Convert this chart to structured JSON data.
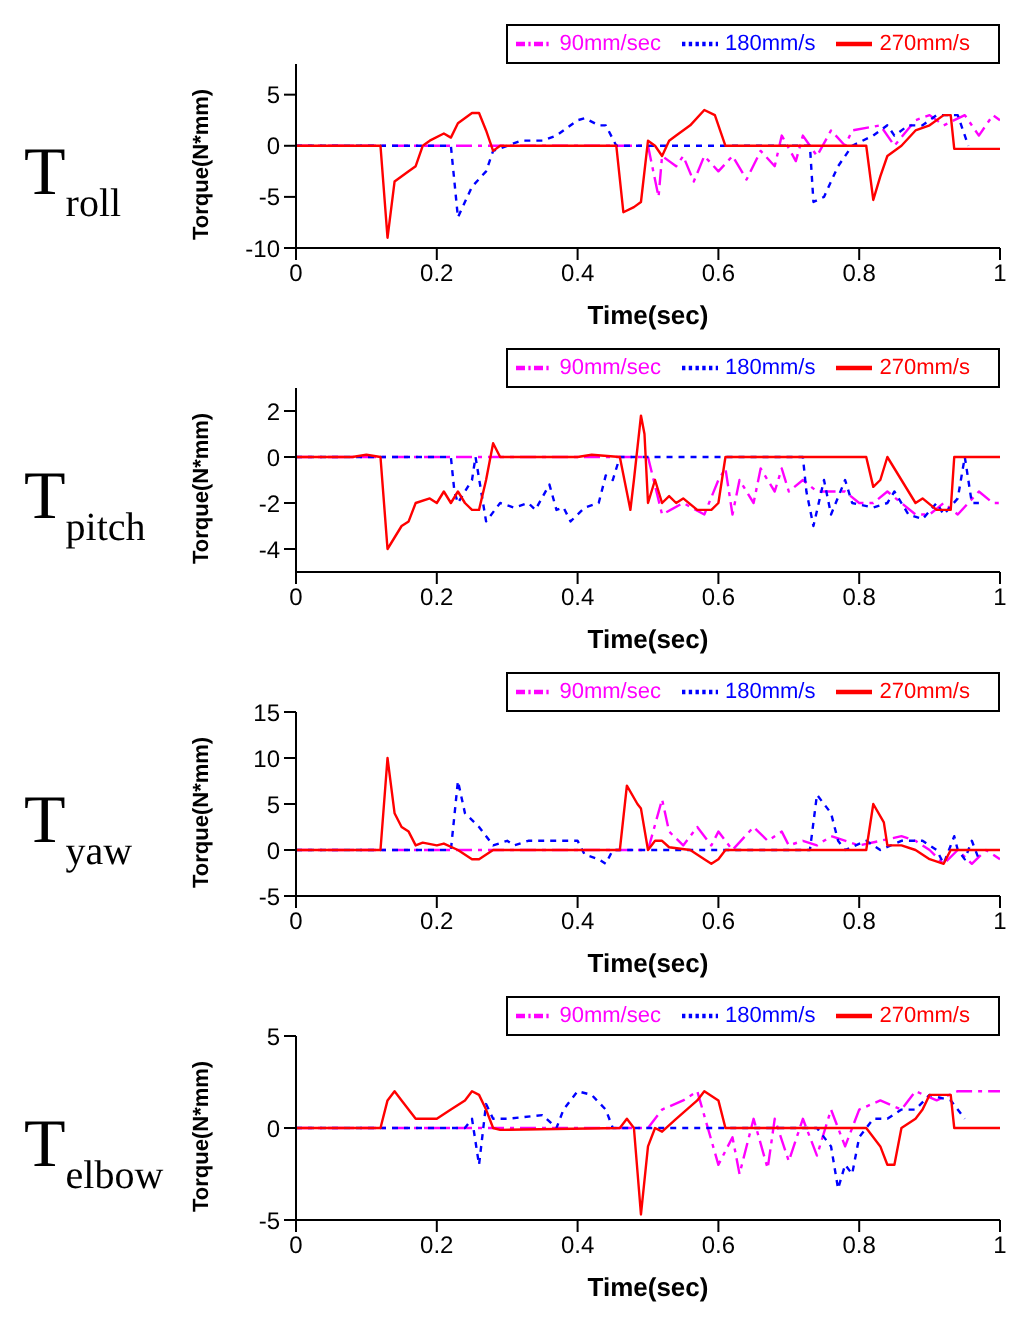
{
  "chart_data": [
    {
      "type": "line",
      "title": "T$_{roll}$",
      "xlabel": "Time(sec)",
      "ylabel": "Torque(N*mm)",
      "xlim": [
        0,
        1
      ],
      "xticks": [
        0,
        0.2,
        0.4,
        0.6,
        0.8,
        1
      ],
      "ylim": [
        -10,
        8
      ],
      "yticks": [
        -10,
        -5,
        0,
        5
      ],
      "legend": "top right",
      "marker": "none",
      "series": [
        {
          "name": "90mm/sec",
          "color": "#ff00ff",
          "line_style": "dashed",
          "x": [
            0,
            0.5,
            0.515,
            0.52,
            0.54,
            0.55,
            0.565,
            0.58,
            0.6,
            0.62,
            0.64,
            0.66,
            0.68,
            0.69,
            0.71,
            0.72,
            0.74,
            0.76,
            0.78,
            0.79,
            0.83,
            0.85,
            0.88,
            0.9,
            0.92,
            0.95,
            0.97,
            0.99,
            1
          ],
          "values": [
            0,
            0,
            -5,
            -1,
            -2,
            -1,
            -3.5,
            -1,
            -2.5,
            -1,
            -3.3,
            -0.5,
            -2,
            1,
            -1.5,
            1,
            -1,
            1.5,
            0,
            1.5,
            2,
            0,
            2.5,
            3,
            2,
            3,
            1,
            3,
            2.5
          ]
        },
        {
          "name": "180mm/s",
          "color": "#0000ff",
          "line_style": "dotted",
          "x": [
            0,
            0.22,
            0.23,
            0.25,
            0.27,
            0.28,
            0.3,
            0.32,
            0.35,
            0.37,
            0.4,
            0.41,
            0.43,
            0.44,
            0.455,
            0.73,
            0.735,
            0.75,
            0.77,
            0.79,
            0.82,
            0.84,
            0.85,
            0.87,
            0.89,
            0.91,
            0.94,
            0.955
          ],
          "values": [
            0,
            0,
            -7,
            -4,
            -2.5,
            -0.5,
            0,
            0.5,
            0.5,
            1,
            2.5,
            2.7,
            2,
            2,
            0,
            0,
            -5.5,
            -5,
            -2,
            0,
            1,
            2,
            1,
            2,
            2,
            3,
            3,
            0
          ]
        },
        {
          "name": "270mm/s",
          "color": "#ff0000",
          "line_style": "solid",
          "x": [
            0,
            0.12,
            0.13,
            0.14,
            0.16,
            0.17,
            0.18,
            0.19,
            0.21,
            0.22,
            0.23,
            0.25,
            0.26,
            0.27,
            0.28,
            0.29,
            0.455,
            0.465,
            0.48,
            0.49,
            0.5,
            0.51,
            0.52,
            0.53,
            0.54,
            0.56,
            0.58,
            0.595,
            0.605,
            0.61,
            0.81,
            0.82,
            0.83,
            0.84,
            0.86,
            0.88,
            0.9,
            0.92,
            0.93,
            0.935,
            1
          ],
          "values": [
            0,
            0,
            -9,
            -3.5,
            -2.5,
            -2,
            0,
            0.5,
            1.2,
            0.8,
            2.2,
            3.2,
            3.2,
            1.5,
            -0.5,
            0,
            0,
            -6.5,
            -6,
            -5.5,
            0.5,
            0,
            -1,
            0.5,
            1,
            2,
            3.5,
            3,
            1,
            0,
            0,
            -5.3,
            -3,
            -1,
            0,
            1.5,
            2,
            3,
            3,
            -0.3,
            -0.3
          ]
        }
      ]
    },
    {
      "type": "line",
      "title": "T$_{pitch}$",
      "xlabel": "Time(sec)",
      "ylabel": "Torque(N*mm)",
      "xlim": [
        0,
        1
      ],
      "xticks": [
        0,
        0.2,
        0.4,
        0.6,
        0.8,
        1
      ],
      "ylim": [
        -5,
        3
      ],
      "yticks": [
        -4,
        -2,
        0,
        2
      ],
      "legend": "top right",
      "marker": "none",
      "series": [
        {
          "name": "90mm/sec",
          "color": "#ff00ff",
          "line_style": "dashed",
          "x": [
            0,
            0.5,
            0.52,
            0.55,
            0.58,
            0.6,
            0.61,
            0.62,
            0.63,
            0.65,
            0.66,
            0.68,
            0.69,
            0.7,
            0.72,
            0.74,
            0.76,
            0.78,
            0.8,
            0.82,
            0.84,
            0.86,
            0.88,
            0.9,
            0.92,
            0.94,
            0.97,
            0.99,
            1
          ],
          "values": [
            0,
            0,
            -2.5,
            -2,
            -2.5,
            -1,
            -0.5,
            -2.5,
            -1,
            -2,
            -0.5,
            -1.5,
            -0.5,
            -1.5,
            -1,
            -1.5,
            -1.5,
            -1.5,
            -2,
            -2,
            -1.5,
            -2,
            -2.5,
            -2.5,
            -2,
            -2.5,
            -1.5,
            -2,
            -2
          ]
        },
        {
          "name": "180mm/s",
          "color": "#0000ff",
          "line_style": "dotted",
          "x": [
            0,
            0.22,
            0.225,
            0.23,
            0.25,
            0.255,
            0.27,
            0.29,
            0.31,
            0.33,
            0.34,
            0.36,
            0.37,
            0.38,
            0.39,
            0.41,
            0.43,
            0.44,
            0.45,
            0.46,
            0.72,
            0.725,
            0.735,
            0.75,
            0.76,
            0.78,
            0.79,
            0.82,
            0.84,
            0.85,
            0.87,
            0.89,
            0.91,
            0.92,
            0.94,
            0.95,
            0.96,
            0.97
          ],
          "values": [
            0,
            0,
            -1.5,
            -2,
            -1,
            0,
            -2.8,
            -2,
            -2.2,
            -2,
            -2.3,
            -1.2,
            -2.3,
            -2.2,
            -2.8,
            -2.2,
            -2,
            -0.8,
            -1,
            0,
            0,
            -1.5,
            -3,
            -1,
            -2.5,
            -1,
            -2,
            -2.2,
            -2,
            -1.5,
            -2.5,
            -2.7,
            -2,
            -2.5,
            -1.8,
            0,
            -2,
            -2
          ]
        },
        {
          "name": "270mm/s",
          "color": "#ff0000",
          "line_style": "solid",
          "x": [
            0,
            0.08,
            0.1,
            0.12,
            0.13,
            0.15,
            0.16,
            0.17,
            0.19,
            0.2,
            0.21,
            0.22,
            0.23,
            0.24,
            0.25,
            0.26,
            0.27,
            0.28,
            0.29,
            0.4,
            0.42,
            0.46,
            0.475,
            0.48,
            0.49,
            0.495,
            0.5,
            0.51,
            0.52,
            0.53,
            0.54,
            0.55,
            0.57,
            0.59,
            0.6,
            0.61,
            0.81,
            0.82,
            0.83,
            0.84,
            0.86,
            0.87,
            0.88,
            0.89,
            0.91,
            0.93,
            0.935,
            1
          ],
          "values": [
            0,
            0,
            0.1,
            0,
            -4,
            -3,
            -2.8,
            -2,
            -1.8,
            -2,
            -1.5,
            -2,
            -1.5,
            -2,
            -2.3,
            -2.3,
            -1,
            0.6,
            0,
            0,
            0.1,
            0,
            -2.3,
            -1,
            1.8,
            1,
            -2,
            -1,
            -2,
            -1.7,
            -2,
            -1.8,
            -2.3,
            -2.3,
            -2,
            0,
            0,
            -1.3,
            -1,
            0,
            -1,
            -1.5,
            -2,
            -1.8,
            -2.3,
            -2.3,
            0,
            0
          ]
        }
      ]
    },
    {
      "type": "line",
      "title": "T$_{yaw}$",
      "xlabel": "Time(sec)",
      "ylabel": "Torque(N*mm)",
      "xlim": [
        0,
        1
      ],
      "xticks": [
        0,
        0.2,
        0.4,
        0.6,
        0.8,
        1
      ],
      "ylim": [
        -5,
        15
      ],
      "yticks": [
        -5,
        0,
        5,
        10,
        15
      ],
      "legend": "top right",
      "marker": "none",
      "series": [
        {
          "name": "90mm/sec",
          "color": "#ff00ff",
          "line_style": "dashed",
          "x": [
            0,
            0.5,
            0.52,
            0.53,
            0.55,
            0.57,
            0.59,
            0.6,
            0.62,
            0.65,
            0.67,
            0.69,
            0.7,
            0.72,
            0.74,
            0.76,
            0.8,
            0.83,
            0.86,
            0.88,
            0.9,
            0.92,
            0.94,
            0.96,
            0.98,
            1
          ],
          "values": [
            0,
            0,
            5.5,
            2,
            0.5,
            2.5,
            0.5,
            2,
            0,
            2.5,
            1,
            2,
            0.5,
            1,
            0.5,
            1.5,
            0.5,
            1,
            1.5,
            1,
            0,
            -1.5,
            0,
            -1.5,
            0,
            -1
          ]
        },
        {
          "name": "180mm/s",
          "color": "#0000ff",
          "line_style": "dotted",
          "x": [
            0,
            0.22,
            0.23,
            0.24,
            0.26,
            0.28,
            0.3,
            0.31,
            0.33,
            0.4,
            0.41,
            0.43,
            0.44,
            0.45,
            0.73,
            0.74,
            0.76,
            0.77,
            0.78,
            0.81,
            0.83,
            0.86,
            0.89,
            0.91,
            0.92,
            0.935,
            0.94,
            0.95,
            0.96,
            0.97
          ],
          "values": [
            0,
            0,
            7.5,
            4,
            2.5,
            0.5,
            1,
            0.5,
            1,
            1,
            -0.5,
            -1,
            -1.5,
            0,
            0,
            6,
            4,
            1,
            0,
            1,
            0,
            1,
            1,
            0,
            -1.5,
            1.5,
            0,
            -1,
            1,
            -1
          ]
        },
        {
          "name": "270mm/s",
          "color": "#ff0000",
          "line_style": "solid",
          "x": [
            0,
            0.12,
            0.13,
            0.14,
            0.15,
            0.16,
            0.17,
            0.18,
            0.2,
            0.21,
            0.23,
            0.25,
            0.26,
            0.28,
            0.46,
            0.47,
            0.485,
            0.49,
            0.5,
            0.51,
            0.52,
            0.53,
            0.56,
            0.58,
            0.59,
            0.6,
            0.61,
            0.81,
            0.82,
            0.835,
            0.84,
            0.86,
            0.88,
            0.9,
            0.92,
            0.93,
            1
          ],
          "values": [
            0,
            0,
            10,
            4,
            2.5,
            2,
            0.5,
            0.8,
            0.5,
            0.7,
            0,
            -1,
            -1,
            0,
            0,
            7,
            5,
            4.5,
            0,
            1,
            1,
            0.3,
            0,
            -1,
            -1.5,
            -1,
            0,
            0,
            5,
            3,
            0.5,
            0.5,
            0,
            -1,
            -1.5,
            0,
            0
          ]
        }
      ]
    },
    {
      "type": "line",
      "title": "T$_{elbow}$",
      "xlabel": "Time(sec)",
      "ylabel": "Torque(N*mm)",
      "xlim": [
        0,
        1
      ],
      "xticks": [
        0,
        0.2,
        0.4,
        0.6,
        0.8,
        1
      ],
      "ylim": [
        -5,
        5
      ],
      "yticks": [
        -5,
        0,
        5
      ],
      "legend": "top right",
      "marker": "none",
      "series": [
        {
          "name": "90mm/sec",
          "color": "#ff00ff",
          "line_style": "dashed",
          "x": [
            0,
            0.5,
            0.52,
            0.55,
            0.57,
            0.6,
            0.62,
            0.63,
            0.65,
            0.67,
            0.68,
            0.7,
            0.72,
            0.74,
            0.76,
            0.78,
            0.8,
            0.83,
            0.86,
            0.88,
            0.91,
            0.94,
            1
          ],
          "values": [
            0,
            0,
            1,
            1.5,
            2,
            -2,
            -0.5,
            -2.5,
            0.5,
            -2.2,
            0.5,
            -1.8,
            0.5,
            -1.5,
            1,
            -1,
            1,
            1.5,
            1,
            2,
            1.5,
            2,
            2
          ]
        },
        {
          "name": "180mm/s",
          "color": "#0000ff",
          "line_style": "dotted",
          "x": [
            0,
            0.24,
            0.25,
            0.26,
            0.27,
            0.28,
            0.3,
            0.35,
            0.37,
            0.38,
            0.4,
            0.42,
            0.44,
            0.45,
            0.74,
            0.76,
            0.77,
            0.78,
            0.79,
            0.8,
            0.82,
            0.84,
            0.86,
            0.88,
            0.9,
            0.93,
            0.95
          ],
          "values": [
            0,
            0,
            0.5,
            -2,
            1.3,
            0.5,
            0.5,
            0.7,
            0,
            1,
            2,
            1.8,
            1,
            0,
            0,
            -1,
            -3.3,
            -2,
            -2.5,
            -0.5,
            0.5,
            0.5,
            1,
            1,
            1.8,
            1.5,
            0.5
          ]
        },
        {
          "name": "270mm/s",
          "color": "#ff0000",
          "line_style": "solid",
          "x": [
            0,
            0.12,
            0.13,
            0.14,
            0.15,
            0.17,
            0.2,
            0.22,
            0.24,
            0.25,
            0.26,
            0.27,
            0.28,
            0.29,
            0.46,
            0.47,
            0.48,
            0.49,
            0.5,
            0.51,
            0.52,
            0.54,
            0.57,
            0.58,
            0.6,
            0.61,
            0.81,
            0.83,
            0.84,
            0.85,
            0.86,
            0.88,
            0.89,
            0.9,
            0.93,
            0.935,
            1
          ],
          "values": [
            0,
            0,
            1.5,
            2,
            1.5,
            0.5,
            0.5,
            1,
            1.5,
            2,
            1.8,
            1,
            0,
            -0.1,
            0,
            0.5,
            0,
            -4.7,
            -1,
            0,
            -0.2,
            0.5,
            1.5,
            2,
            1.5,
            0,
            0,
            -1,
            -2,
            -2,
            0,
            0.5,
            1,
            1.8,
            1.8,
            0,
            0
          ]
        }
      ]
    }
  ]
}
